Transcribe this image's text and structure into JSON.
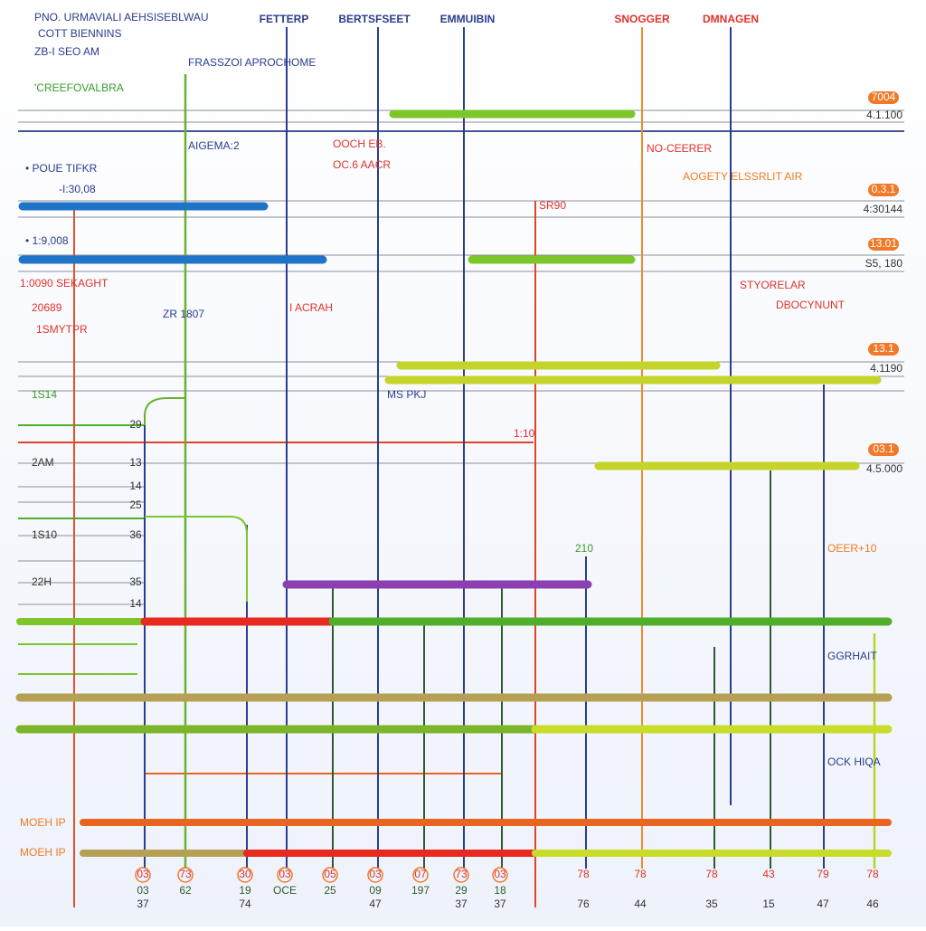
{
  "header": {
    "title": "PNO. URMAVIALI AEHSISEBLWAU",
    "subtitle": "COTT BIENNINS",
    "timestamp": "ZB-I SEO AM"
  },
  "columns": [
    "FETTERP",
    "BERTSFSEET",
    "EMMUIBIN",
    "SNOGGER",
    "DMNAGEN"
  ],
  "annotations": [
    "FRASSZOI APROCHOME",
    "'CREEFOVALBRA",
    "AIGEMA:2",
    "OOCH EB.",
    "OC.6 AACR",
    "NO-CEERER",
    "AOGETY ELSSRLIT AIR",
    "• POUE TIFKR",
    "-I:30,08",
    "SR90",
    "• 1:9,008",
    "1:0090 SEKAGHT",
    "20689",
    "ZR 1807",
    "I ACRAH",
    "1SMYTPR",
    "STYORELAR",
    "DBOCYNUNT",
    "MS PKJ",
    "1:10",
    "210",
    "OEER+10",
    "GGRHAIT",
    "OCK HIQA",
    "MOEH IP",
    "MOEH IP"
  ],
  "left_labels": [
    "1S14",
    "2AM",
    "1S10",
    "22H"
  ],
  "left_numbers": [
    "29",
    "13",
    "14",
    "25",
    "36",
    "35",
    "14"
  ],
  "right_badges": [
    "7004",
    "0.3.1",
    "13.01",
    "13.1",
    "03.1"
  ],
  "right_values": [
    "4.1.100",
    "4:30144",
    "S5, 180",
    "4.1190",
    "4.5.000"
  ],
  "bottom": {
    "top_row": [
      "03",
      "73",
      "30",
      "03",
      "05",
      "03",
      "07",
      "73",
      "03",
      "78",
      "78",
      "78",
      "43",
      "79",
      "78"
    ],
    "mid_row": [
      "03",
      "62",
      "19",
      "OCE",
      "25",
      "09",
      "197",
      "29",
      "18"
    ],
    "bottom_row": [
      "37",
      "74",
      "47",
      "37",
      "37",
      "76",
      "44",
      "35",
      "15",
      "47",
      "46"
    ]
  }
}
